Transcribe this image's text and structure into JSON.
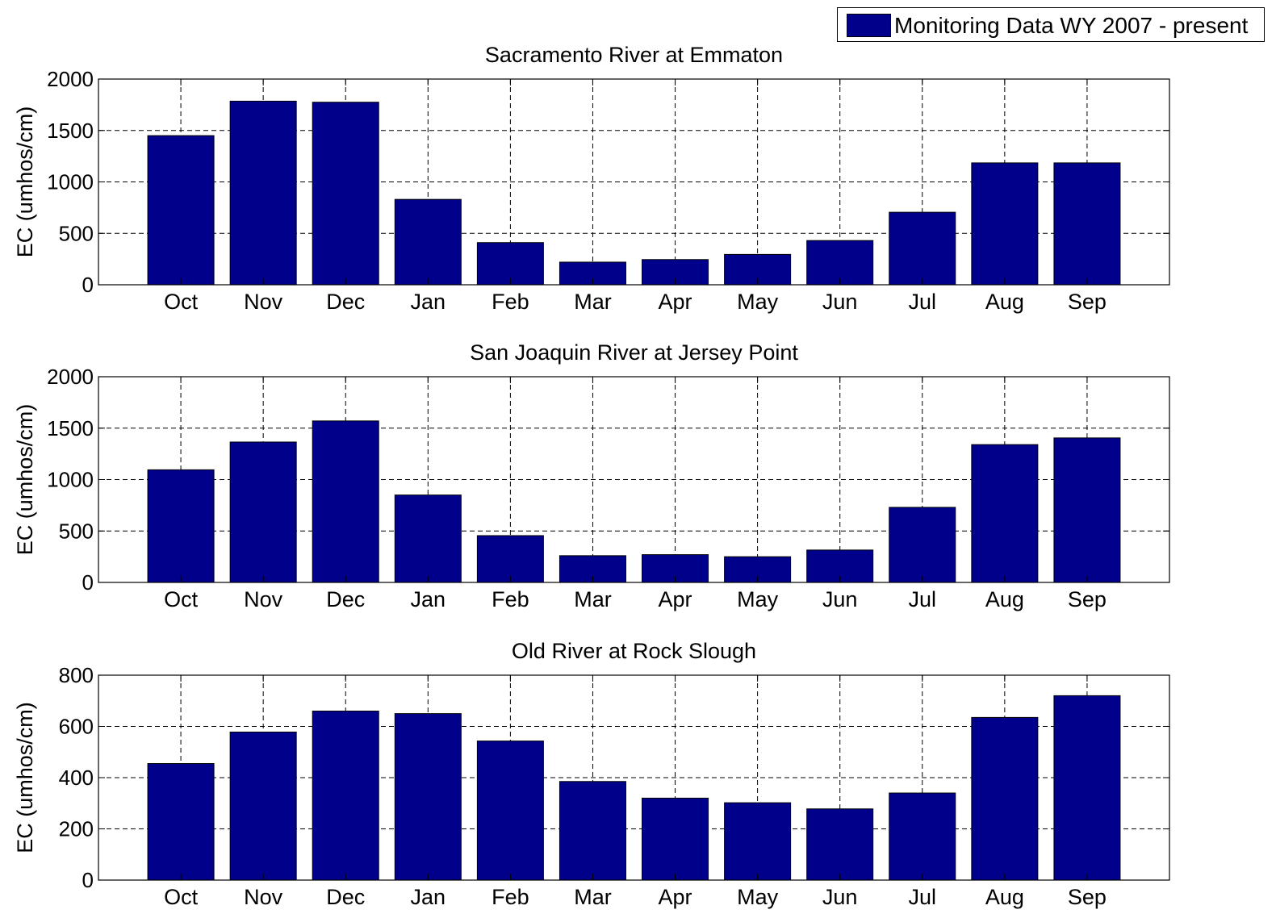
{
  "legend": {
    "label": "Monitoring Data WY 2007 - present",
    "color": "#00008b"
  },
  "bar_color": "#00008b",
  "chart_data": [
    {
      "type": "bar",
      "title": "Sacramento River at Emmaton",
      "ylabel": "EC (umhos/cm)",
      "xlabel": "",
      "grid": true,
      "ylim": [
        0,
        2000
      ],
      "yticks": [
        0,
        500,
        1000,
        1500,
        2000
      ],
      "categories": [
        "Oct",
        "Nov",
        "Dec",
        "Jan",
        "Feb",
        "Mar",
        "Apr",
        "May",
        "Jun",
        "Jul",
        "Aug",
        "Sep"
      ],
      "series": [
        {
          "name": "Monitoring Data WY 2007 - present",
          "values": [
            1450,
            1785,
            1775,
            830,
            410,
            220,
            245,
            295,
            430,
            705,
            1185,
            1185
          ]
        }
      ]
    },
    {
      "type": "bar",
      "title": "San Joaquin River at Jersey Point",
      "ylabel": "EC (umhos/cm)",
      "xlabel": "",
      "grid": true,
      "ylim": [
        0,
        2000
      ],
      "yticks": [
        0,
        500,
        1000,
        1500,
        2000
      ],
      "categories": [
        "Oct",
        "Nov",
        "Dec",
        "Jan",
        "Feb",
        "Mar",
        "Apr",
        "May",
        "Jun",
        "Jul",
        "Aug",
        "Sep"
      ],
      "series": [
        {
          "name": "Monitoring Data WY 2007 - present",
          "values": [
            1095,
            1365,
            1570,
            850,
            455,
            260,
            270,
            250,
            315,
            730,
            1340,
            1405
          ]
        }
      ]
    },
    {
      "type": "bar",
      "title": "Old River at Rock Slough",
      "ylabel": "EC (umhos/cm)",
      "xlabel": "",
      "grid": true,
      "ylim": [
        0,
        800
      ],
      "yticks": [
        0,
        200,
        400,
        600,
        800
      ],
      "categories": [
        "Oct",
        "Nov",
        "Dec",
        "Jan",
        "Feb",
        "Mar",
        "Apr",
        "May",
        "Jun",
        "Jul",
        "Aug",
        "Sep"
      ],
      "series": [
        {
          "name": "Monitoring Data WY 2007 - present",
          "values": [
            455,
            578,
            660,
            650,
            543,
            385,
            320,
            302,
            278,
            340,
            635,
            720
          ]
        }
      ]
    }
  ]
}
